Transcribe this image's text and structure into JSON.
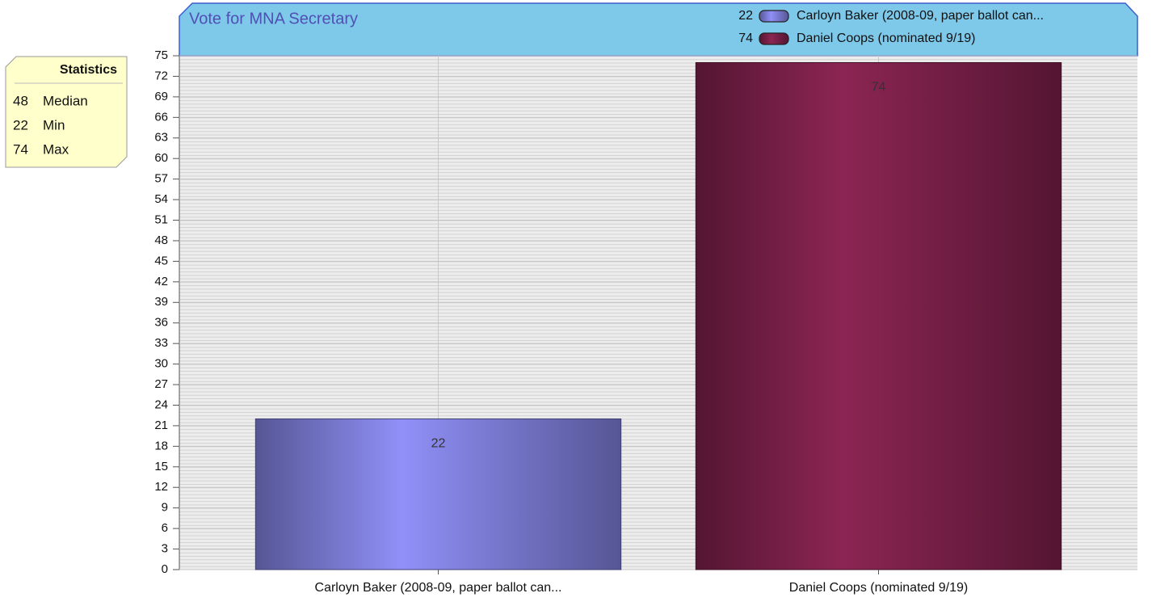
{
  "chart_data": {
    "type": "bar",
    "title": "Vote for MNA Secretary",
    "categories": [
      "Carloyn Baker (2008-09, paper ballot can...",
      "Daniel Coops (nominated 9/19)"
    ],
    "values": [
      22,
      74
    ],
    "colors": [
      "#9090f8",
      "#8c2553"
    ],
    "ylim": [
      0,
      75
    ],
    "yticks": [
      0,
      3,
      6,
      9,
      12,
      15,
      18,
      21,
      24,
      27,
      30,
      33,
      36,
      39,
      42,
      45,
      48,
      51,
      54,
      57,
      60,
      63,
      66,
      69,
      72,
      75
    ],
    "grid": true,
    "legend": "top-right",
    "statistics": {
      "title": "Statistics",
      "items": [
        {
          "value": 48,
          "label": "Median"
        },
        {
          "value": 22,
          "label": "Min"
        },
        {
          "value": 74,
          "label": "Max"
        }
      ]
    }
  }
}
